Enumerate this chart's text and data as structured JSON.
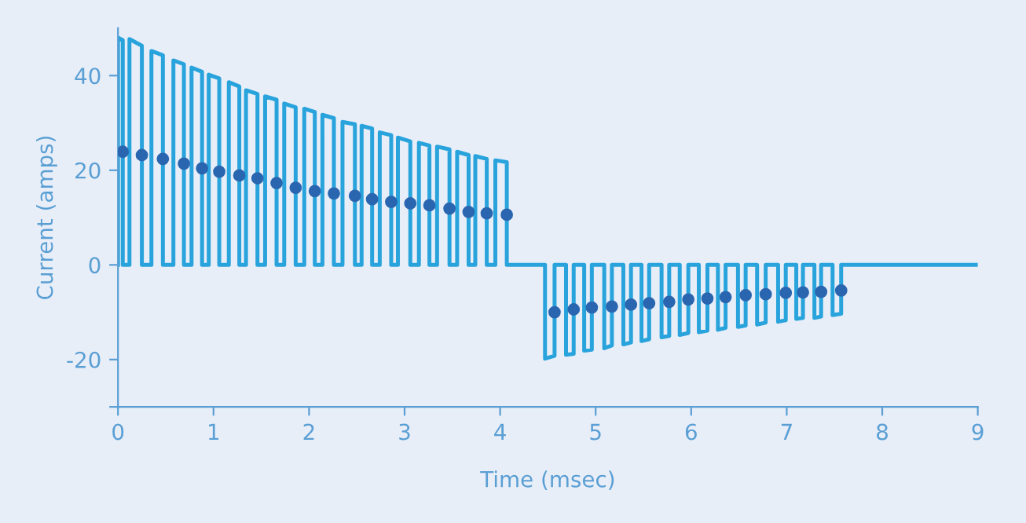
{
  "chart_data": {
    "type": "line",
    "xlabel": "Time (msec)",
    "ylabel": "Current (amps)",
    "xlim": [
      0,
      9
    ],
    "xticks": [
      0,
      1,
      2,
      3,
      4,
      5,
      6,
      7,
      8,
      9
    ],
    "ylim": [
      -30,
      50
    ],
    "yticks": [
      {
        "value": -30,
        "label": null
      },
      -20,
      0,
      20,
      40
    ],
    "grid": false,
    "legend": false,
    "series": [
      {
        "color": "#29a3dc",
        "marker": "none",
        "line_style": "solid",
        "x": [
          0,
          0,
          0.05,
          0.05,
          0.12,
          0.12,
          0.25,
          0.25,
          0.35,
          0.35,
          0.47,
          0.47,
          0.58,
          0.58,
          0.69,
          0.69,
          0.77,
          0.77,
          0.88,
          0.88,
          0.95,
          0.95,
          1.06,
          1.06,
          1.16,
          1.16,
          1.27,
          1.27,
          1.34,
          1.34,
          1.46,
          1.46,
          1.54,
          1.54,
          1.66,
          1.66,
          1.74,
          1.74,
          1.86,
          1.86,
          1.95,
          1.95,
          2.06,
          2.06,
          2.14,
          2.14,
          2.26,
          2.26,
          2.35,
          2.35,
          2.48,
          2.48,
          2.55,
          2.55,
          2.66,
          2.66,
          2.74,
          2.74,
          2.86,
          2.86,
          2.93,
          2.93,
          3.06,
          3.06,
          3.15,
          3.15,
          3.26,
          3.26,
          3.34,
          3.34,
          3.47,
          3.47,
          3.55,
          3.55,
          3.67,
          3.67,
          3.74,
          3.74,
          3.86,
          3.86,
          3.95,
          3.95,
          4.07,
          4.07,
          4.47,
          4.47,
          4.57,
          4.57,
          4.69,
          4.69,
          4.77,
          4.77,
          4.88,
          4.88,
          4.96,
          4.96,
          5.09,
          5.09,
          5.17,
          5.17,
          5.29,
          5.29,
          5.37,
          5.37,
          5.48,
          5.48,
          5.56,
          5.56,
          5.69,
          5.69,
          5.77,
          5.77,
          5.88,
          5.88,
          5.97,
          5.97,
          6.08,
          6.08,
          6.17,
          6.17,
          6.28,
          6.28,
          6.36,
          6.36,
          6.49,
          6.49,
          6.57,
          6.57,
          6.69,
          6.69,
          6.78,
          6.78,
          6.91,
          6.91,
          6.99,
          6.99,
          7.1,
          7.1,
          7.17,
          7.17,
          7.29,
          7.29,
          7.36,
          7.36,
          7.48,
          7.48,
          7.57,
          7.57,
          9
        ],
        "values": [
          0,
          48,
          47.5,
          0,
          0,
          47.7,
          46.3,
          0,
          0,
          45.2,
          44.3,
          0,
          0,
          43.2,
          42.4,
          0,
          0,
          41.7,
          40.8,
          0,
          0,
          40.2,
          39.4,
          0,
          0,
          38.6,
          37.7,
          0,
          0,
          36.9,
          36.1,
          0,
          0,
          35.6,
          34.9,
          0,
          0,
          34.1,
          33.3,
          0,
          0,
          33,
          32.3,
          0,
          0,
          31.7,
          31,
          0,
          0,
          30.2,
          29.7,
          0,
          0,
          29.4,
          28.8,
          0,
          0,
          28,
          27.4,
          0,
          0,
          26.9,
          26.1,
          0,
          0,
          25.8,
          25.2,
          0,
          0,
          25,
          24.4,
          0,
          0,
          23.9,
          23.2,
          0,
          0,
          23,
          22.4,
          0,
          0,
          22.1,
          21.7,
          0,
          0,
          -19.8,
          -19.2,
          0,
          0,
          -19,
          -18.8,
          0,
          0,
          -18.1,
          -17.9,
          0,
          0,
          -17.6,
          -17,
          0,
          0,
          -16.8,
          -16.4,
          0,
          0,
          -16.1,
          -15.7,
          0,
          0,
          -15.3,
          -15,
          0,
          0,
          -14.8,
          -14.4,
          0,
          0,
          -14.2,
          -13.9,
          0,
          0,
          -13.7,
          -13.3,
          0,
          0,
          -13.1,
          -12.8,
          0,
          0,
          -12.6,
          -12.2,
          0,
          0,
          -12,
          -11.7,
          0,
          0,
          -11.4,
          -11.2,
          0,
          0,
          -11.2,
          -10.9,
          0,
          0,
          -10.6,
          -10.3,
          0,
          0
        ]
      },
      {
        "type": "scatter",
        "color": "#2a66b0",
        "marker": "circle",
        "x": [
          0.05,
          0.25,
          0.47,
          0.69,
          0.88,
          1.06,
          1.27,
          1.46,
          1.66,
          1.86,
          2.06,
          2.26,
          2.48,
          2.66,
          2.86,
          3.06,
          3.26,
          3.47,
          3.67,
          3.86,
          4.07,
          4.57,
          4.77,
          4.96,
          5.17,
          5.37,
          5.56,
          5.77,
          5.97,
          6.17,
          6.36,
          6.57,
          6.78,
          6.99,
          7.17,
          7.36,
          7.57
        ],
        "values": [
          23.9,
          23.2,
          22.4,
          21.4,
          20.4,
          19.7,
          18.9,
          18.3,
          17.3,
          16.3,
          15.6,
          15.1,
          14.6,
          13.9,
          13.3,
          13,
          12.6,
          11.9,
          11.2,
          10.9,
          10.6,
          -10,
          -9.4,
          -9,
          -8.8,
          -8.4,
          -8.1,
          -7.8,
          -7.3,
          -7.1,
          -6.8,
          -6.4,
          -6.2,
          -5.9,
          -5.8,
          -5.7,
          -5.4
        ]
      }
    ]
  }
}
